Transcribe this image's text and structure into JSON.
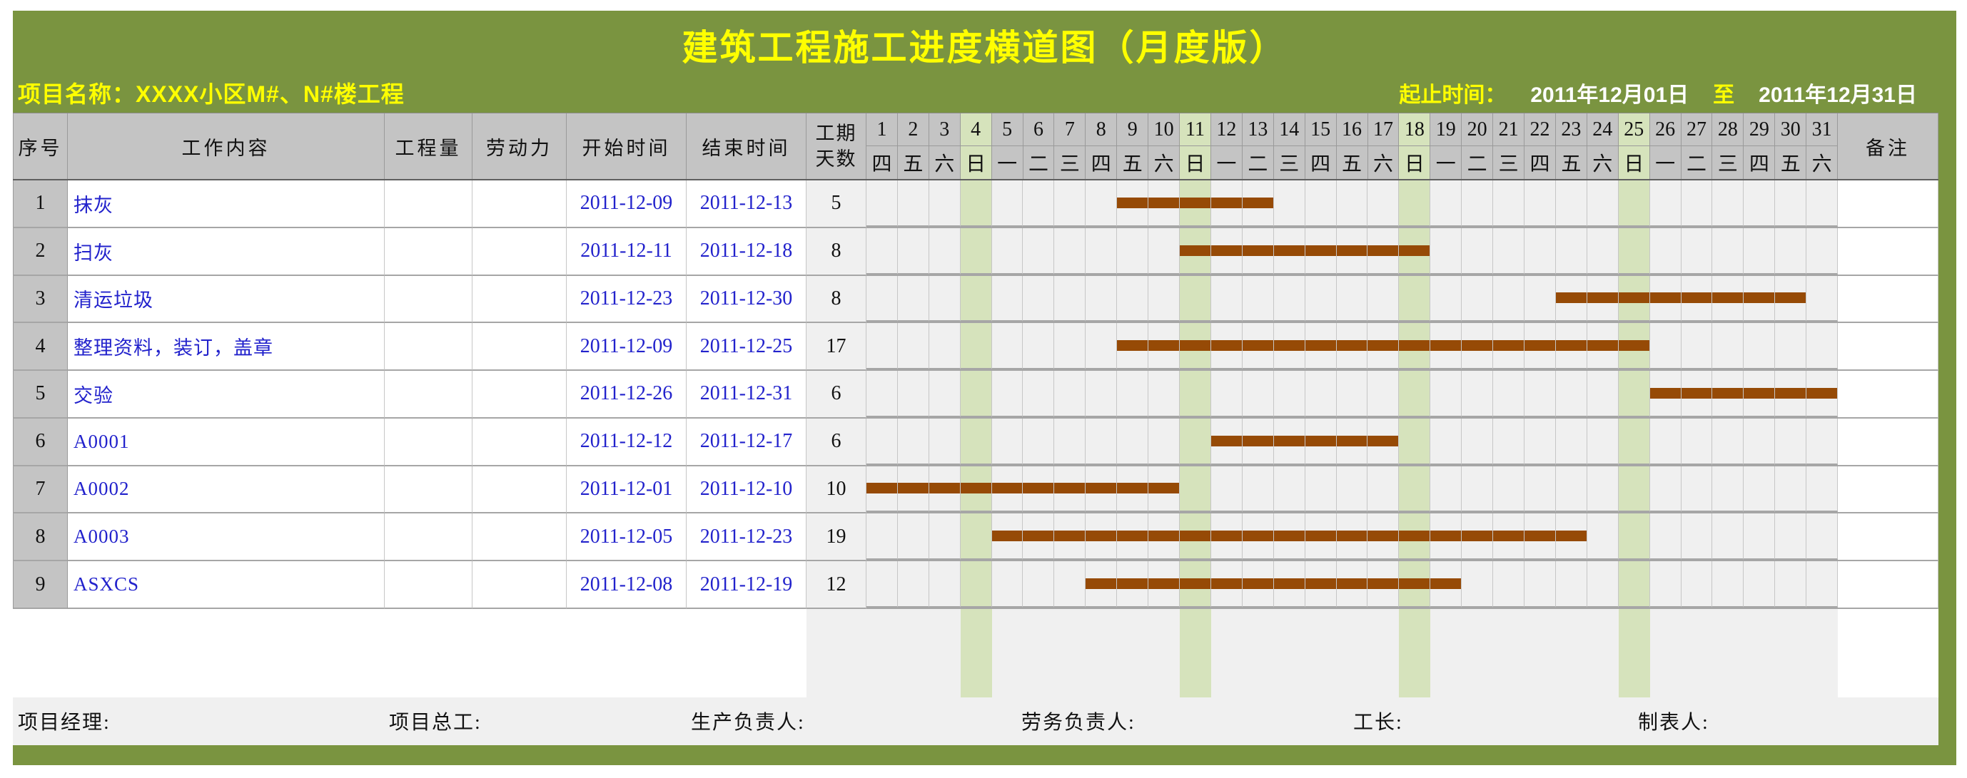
{
  "title": "建筑工程施工进度横道图（月度版）",
  "project_name": "项目名称：XXXX小区M#、N#楼工程",
  "date_range": {
    "label": "起止时间：",
    "start": "2011年12月01日",
    "to": "至",
    "end": "2011年12月31日"
  },
  "columns": {
    "seq": "序号",
    "task": "工作内容",
    "quantity": "工程量",
    "labor": "劳动力",
    "start": "开始时间",
    "end": "结束时间",
    "duration_top": "工期",
    "duration_bottom": "天数",
    "remark": "备注"
  },
  "calendar": {
    "days": [
      1,
      2,
      3,
      4,
      5,
      6,
      7,
      8,
      9,
      10,
      11,
      12,
      13,
      14,
      15,
      16,
      17,
      18,
      19,
      20,
      21,
      22,
      23,
      24,
      25,
      26,
      27,
      28,
      29,
      30,
      31
    ],
    "weekdays": [
      "四",
      "五",
      "六",
      "日",
      "一",
      "二",
      "三",
      "四",
      "五",
      "六",
      "日",
      "一",
      "二",
      "三",
      "四",
      "五",
      "六",
      "日",
      "一",
      "二",
      "三",
      "四",
      "五",
      "六",
      "日",
      "一",
      "二",
      "三",
      "四",
      "五",
      "六"
    ],
    "sundays": [
      4,
      11,
      18,
      25
    ]
  },
  "rows": [
    {
      "seq": "1",
      "task": "抹灰",
      "quantity": "",
      "labor": "",
      "start": "2011-12-09",
      "end": "2011-12-13",
      "duration": "5",
      "bar_start": 9,
      "bar_end": 13,
      "remark": ""
    },
    {
      "seq": "2",
      "task": "扫灰",
      "quantity": "",
      "labor": "",
      "start": "2011-12-11",
      "end": "2011-12-18",
      "duration": "8",
      "bar_start": 11,
      "bar_end": 18,
      "remark": ""
    },
    {
      "seq": "3",
      "task": "清运垃圾",
      "quantity": "",
      "labor": "",
      "start": "2011-12-23",
      "end": "2011-12-30",
      "duration": "8",
      "bar_start": 23,
      "bar_end": 30,
      "remark": ""
    },
    {
      "seq": "4",
      "task": "整理资料，装订，盖章",
      "quantity": "",
      "labor": "",
      "start": "2011-12-09",
      "end": "2011-12-25",
      "duration": "17",
      "bar_start": 9,
      "bar_end": 25,
      "remark": ""
    },
    {
      "seq": "5",
      "task": "交验",
      "quantity": "",
      "labor": "",
      "start": "2011-12-26",
      "end": "2011-12-31",
      "duration": "6",
      "bar_start": 26,
      "bar_end": 31,
      "remark": ""
    },
    {
      "seq": "6",
      "task": "A0001",
      "quantity": "",
      "labor": "",
      "start": "2011-12-12",
      "end": "2011-12-17",
      "duration": "6",
      "bar_start": 12,
      "bar_end": 17,
      "remark": ""
    },
    {
      "seq": "7",
      "task": "A0002",
      "quantity": "",
      "labor": "",
      "start": "2011-12-01",
      "end": "2011-12-10",
      "duration": "10",
      "bar_start": 1,
      "bar_end": 10,
      "remark": ""
    },
    {
      "seq": "8",
      "task": "A0003",
      "quantity": "",
      "labor": "",
      "start": "2011-12-05",
      "end": "2011-12-23",
      "duration": "19",
      "bar_start": 5,
      "bar_end": 23,
      "remark": ""
    },
    {
      "seq": "9",
      "task": "ASXCS",
      "quantity": "",
      "labor": "",
      "start": "2011-12-08",
      "end": "2011-12-19",
      "duration": "12",
      "bar_start": 8,
      "bar_end": 19,
      "remark": ""
    }
  ],
  "footer": {
    "labels": [
      "项目经理:",
      "项目总工:",
      "生产负责人:",
      "劳务负责人:",
      "工长:",
      "制表人:"
    ]
  },
  "colors": {
    "olive_frame": "#7A9440",
    "title_yellow": "#FFFF00",
    "header_gray": "#C4C4C4",
    "cell_gray": "#F0F0F0",
    "sunday_green": "#D6E3BC",
    "bar_brown": "#964A06",
    "link_blue": "#2222CC"
  },
  "chart_data": {
    "type": "bar",
    "subtype": "gantt",
    "title": "建筑工程施工进度横道图（月度版）",
    "x_axis": {
      "unit": "2011年12月 (day of month)",
      "range": [
        1,
        31
      ],
      "highlighted_sundays": [
        4,
        11,
        18,
        25
      ]
    },
    "tasks": [
      {
        "name": "抹灰",
        "start": "2011-12-09",
        "end": "2011-12-13",
        "duration_days": 5
      },
      {
        "name": "扫灰",
        "start": "2011-12-11",
        "end": "2011-12-18",
        "duration_days": 8
      },
      {
        "name": "清运垃圾",
        "start": "2011-12-23",
        "end": "2011-12-30",
        "duration_days": 8
      },
      {
        "name": "整理资料，装订，盖章",
        "start": "2011-12-09",
        "end": "2011-12-25",
        "duration_days": 17
      },
      {
        "name": "交验",
        "start": "2011-12-26",
        "end": "2011-12-31",
        "duration_days": 6
      },
      {
        "name": "A0001",
        "start": "2011-12-12",
        "end": "2011-12-17",
        "duration_days": 6
      },
      {
        "name": "A0002",
        "start": "2011-12-01",
        "end": "2011-12-10",
        "duration_days": 10
      },
      {
        "name": "A0003",
        "start": "2011-12-05",
        "end": "2011-12-23",
        "duration_days": 19
      },
      {
        "name": "ASXCS",
        "start": "2011-12-08",
        "end": "2011-12-19",
        "duration_days": 12
      }
    ],
    "bar_color": "#964A06",
    "legend": "none",
    "grid": true
  }
}
